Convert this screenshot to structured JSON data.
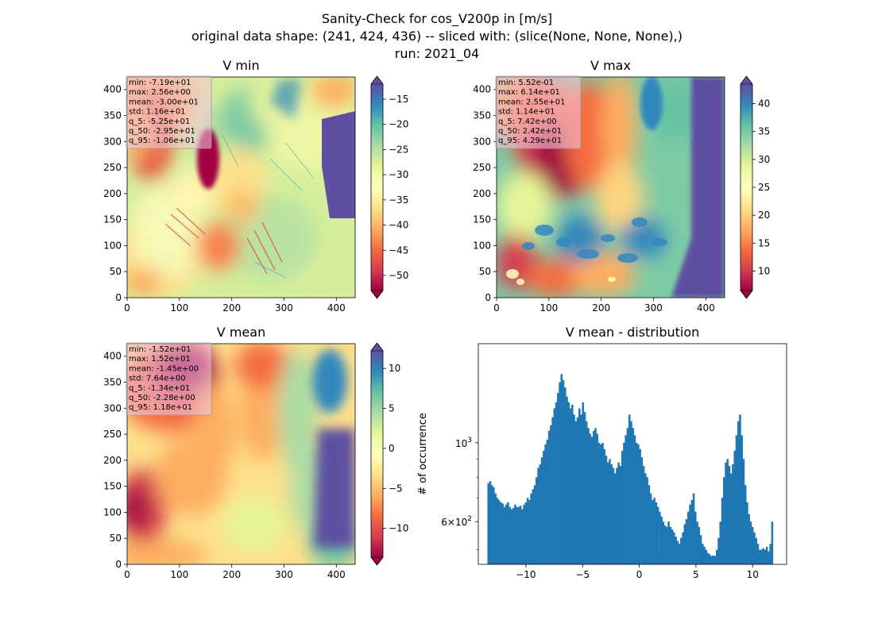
{
  "figure": {
    "suptitle_lines": [
      "Sanity-Check for cos_V200p in [m/s]",
      "original data shape: (241, 424, 436) -- sliced with: (slice(None, None, None),)",
      "run: 2021_04"
    ]
  },
  "chart_data": [
    {
      "type": "heatmap",
      "title": "V min",
      "xlim": [
        0,
        436
      ],
      "ylim": [
        0,
        424
      ],
      "xticks": [
        0,
        100,
        200,
        300,
        400
      ],
      "yticks": [
        0,
        50,
        100,
        150,
        200,
        250,
        300,
        350,
        400
      ],
      "colormap": "Spectral",
      "colorbar": {
        "range": [
          -53,
          -12
        ],
        "ticks": [
          -50,
          -45,
          -40,
          -35,
          -30,
          -25,
          -20,
          -15
        ],
        "extend": "both"
      },
      "stats": [
        "min: -7.19e+01",
        "max: 2.56e+00",
        "mean: -3.00e+01",
        "std: 1.16e+01",
        "q_5: -5.25e+01",
        "q_50: -2.95e+01",
        "q_95: -1.06e+01"
      ]
    },
    {
      "type": "heatmap",
      "title": "V max",
      "xlim": [
        0,
        436
      ],
      "ylim": [
        0,
        424
      ],
      "xticks": [
        0,
        100,
        200,
        300,
        400
      ],
      "yticks": [
        0,
        50,
        100,
        150,
        200,
        250,
        300,
        350,
        400
      ],
      "colormap": "Spectral",
      "colorbar": {
        "range": [
          6.5,
          43.5
        ],
        "ticks": [
          10,
          15,
          20,
          25,
          30,
          35,
          40
        ],
        "extend": "both"
      },
      "stats": [
        "min: 5.52e-01",
        "max: 6.14e+01",
        "mean: 2.55e+01",
        "std: 1.14e+01",
        "q_5: 7.42e+00",
        "q_50: 2.42e+01",
        "q_95: 4.29e+01"
      ]
    },
    {
      "type": "heatmap",
      "title": "V mean",
      "xlim": [
        0,
        436
      ],
      "ylim": [
        0,
        424
      ],
      "xticks": [
        0,
        100,
        200,
        300,
        400
      ],
      "yticks": [
        0,
        50,
        100,
        150,
        200,
        250,
        300,
        350,
        400
      ],
      "colormap": "Spectral",
      "colorbar": {
        "range": [
          -13.6,
          12.2
        ],
        "ticks": [
          -10,
          -5,
          0,
          5,
          10
        ],
        "extend": "both"
      },
      "stats": [
        "min: -1.52e+01",
        "max: 1.52e+01",
        "mean: -1.45e+00",
        "std: 7.64e+00",
        "q_5: -1.34e+01",
        "q_50: -2.28e+00",
        "q_95: 1.18e+01"
      ]
    },
    {
      "type": "bar",
      "title": "V mean - distribution",
      "xlabel": "",
      "ylabel": "# of occurrence",
      "yscale": "log",
      "color": "#1f77b4",
      "xlim": [
        -14.2,
        13.0
      ],
      "ylim": [
        455,
        1900
      ],
      "xticks": [
        -10,
        -5,
        0,
        5,
        10
      ],
      "xtick_labels": [
        "−10",
        "−5",
        "0",
        "5",
        "10"
      ],
      "yticks": [
        {
          "value": 1000,
          "base": "10",
          "exp": "3"
        },
        {
          "value": 600,
          "base": "6×10",
          "exp": "2"
        }
      ],
      "bin_range": [
        -13.4,
        11.8
      ],
      "counts": [
        770,
        780,
        760,
        750,
        720,
        700,
        690,
        680,
        675,
        660,
        670,
        680,
        660,
        650,
        655,
        670,
        660,
        660,
        665,
        650,
        670,
        680,
        700,
        690,
        720,
        740,
        760,
        800,
        850,
        870,
        910,
        950,
        990,
        1020,
        1080,
        1120,
        1180,
        1250,
        1300,
        1380,
        1480,
        1560,
        1500,
        1430,
        1350,
        1300,
        1250,
        1280,
        1200,
        1150,
        1180,
        1250,
        1200,
        1300,
        1220,
        1150,
        1100,
        1060,
        1040,
        1080,
        1100,
        1060,
        1000,
        990,
        1000,
        960,
        920,
        880,
        900,
        870,
        850,
        820,
        850,
        880,
        860,
        950,
        1000,
        1050,
        1100,
        1200,
        1150,
        1100,
        1050,
        1000,
        990,
        960,
        910,
        860,
        820,
        800,
        760,
        720,
        690,
        700,
        680,
        660,
        640,
        620,
        600,
        585,
        580,
        600,
        580,
        570,
        560,
        545,
        530,
        520,
        540,
        560,
        590,
        610,
        640,
        670,
        690,
        720,
        640,
        600,
        580,
        550,
        520,
        510,
        500,
        490,
        485,
        480,
        482,
        480,
        500,
        540,
        600,
        700,
        800,
        880,
        900,
        860,
        820,
        870,
        950,
        1050,
        1150,
        1200,
        1050,
        900,
        760,
        680,
        630,
        600,
        580,
        560,
        540,
        520,
        500,
        500,
        505,
        500,
        510,
        495,
        520,
        600
      ]
    }
  ]
}
